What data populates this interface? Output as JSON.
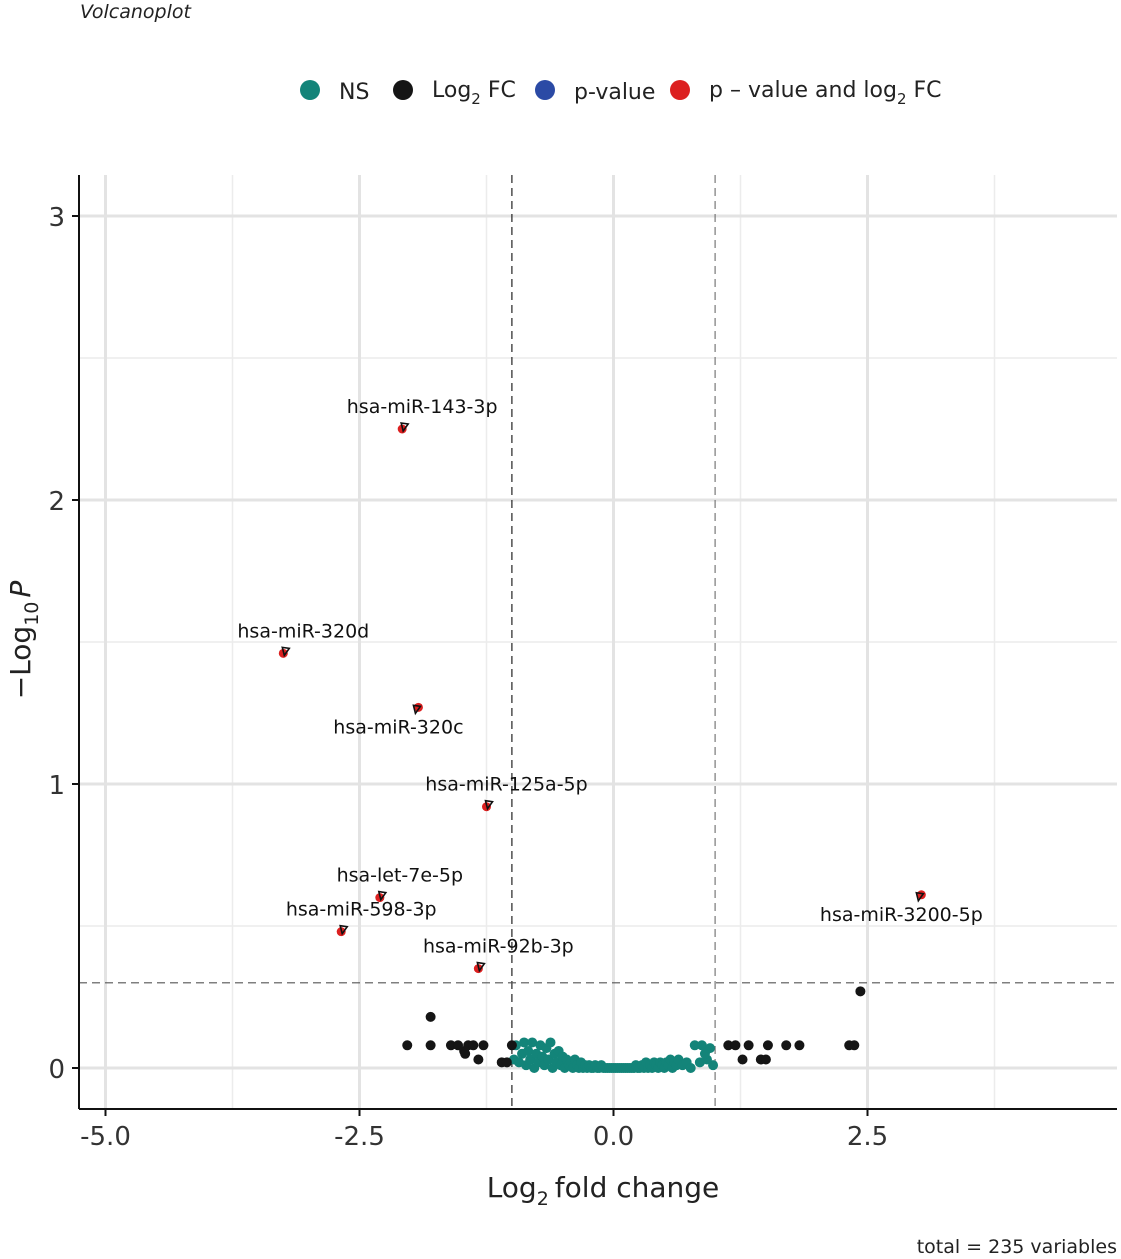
{
  "chart_data": {
    "type": "scatter",
    "subtitle": "Volcanoplot",
    "caption": "total = 235 variables",
    "xlabel": "fold change",
    "xlabel_prefix": "Log",
    "xlabel_sub": "2",
    "ylabel_prefix": "−Log",
    "ylabel_sub": "10",
    "ylabel_italic": "P",
    "xlim": [
      -5.4,
      4.8
    ],
    "ylim": [
      -0.14,
      3.15
    ],
    "x_ticks": [
      -5.0,
      -2.5,
      0.0,
      2.5
    ],
    "x_tick_labels": [
      "-5.0",
      "-2.5",
      "0.0",
      "2.5"
    ],
    "y_ticks": [
      0,
      1,
      2,
      3
    ],
    "y_tick_labels": [
      "0",
      "1",
      "2",
      "3"
    ],
    "fc_cutoff": [
      -1,
      1
    ],
    "p_cutoff": 0.3,
    "legend": [
      {
        "key": "ns",
        "text": "NS",
        "color": "#138479"
      },
      {
        "key": "fc",
        "text": "Log",
        "sub": "2",
        "after": " FC",
        "color": "#151515"
      },
      {
        "key": "p",
        "text": "p-value",
        "color": "#2b4aa5"
      },
      {
        "key": "both",
        "text": "p – value and log",
        "sub": "2",
        "after": " FC",
        "color": "#dc2020"
      }
    ],
    "series": [
      {
        "name": "NS",
        "color": "#138479",
        "points": [
          [
            -0.98,
            0.03
          ],
          [
            -0.96,
            0.08
          ],
          [
            -0.93,
            0.02
          ],
          [
            -0.9,
            0.05
          ],
          [
            -0.88,
            0.09
          ],
          [
            -0.86,
            0.01
          ],
          [
            -0.84,
            0.06
          ],
          [
            -0.82,
            0.03
          ],
          [
            -0.8,
            0.09
          ],
          [
            -0.78,
            0.0
          ],
          [
            -0.76,
            0.05
          ],
          [
            -0.74,
            0.02
          ],
          [
            -0.72,
            0.08
          ],
          [
            -0.7,
            0.04
          ],
          [
            -0.68,
            0.01
          ],
          [
            -0.66,
            0.07
          ],
          [
            -0.64,
            0.03
          ],
          [
            -0.62,
            0.09
          ],
          [
            -0.6,
            0.0
          ],
          [
            -0.58,
            0.05
          ],
          [
            -0.56,
            0.02
          ],
          [
            -0.54,
            0.06
          ],
          [
            -0.52,
            0.01
          ],
          [
            -0.5,
            0.04
          ],
          [
            -0.48,
            0.0
          ],
          [
            -0.46,
            0.03
          ],
          [
            -0.44,
            0.01
          ],
          [
            -0.42,
            0.02
          ],
          [
            -0.4,
            0.0
          ],
          [
            -0.38,
            0.03
          ],
          [
            -0.36,
            0.01
          ],
          [
            -0.34,
            0.0
          ],
          [
            -0.32,
            0.02
          ],
          [
            -0.3,
            0.0
          ],
          [
            -0.28,
            0.01
          ],
          [
            -0.26,
            0.0
          ],
          [
            -0.24,
            0.01
          ],
          [
            -0.22,
            0.0
          ],
          [
            -0.2,
            0.0
          ],
          [
            -0.18,
            0.01
          ],
          [
            -0.16,
            0.0
          ],
          [
            -0.14,
            0.0
          ],
          [
            -0.12,
            0.01
          ],
          [
            -0.1,
            0.0
          ],
          [
            -0.08,
            0.0
          ],
          [
            -0.06,
            0.0
          ],
          [
            -0.04,
            0.0
          ],
          [
            -0.02,
            0.0
          ],
          [
            0.0,
            0.0
          ],
          [
            0.02,
            0.0
          ],
          [
            0.04,
            0.0
          ],
          [
            0.06,
            0.0
          ],
          [
            0.08,
            0.0
          ],
          [
            0.1,
            0.0
          ],
          [
            0.12,
            0.0
          ],
          [
            0.14,
            0.0
          ],
          [
            0.16,
            0.0
          ],
          [
            0.18,
            0.0
          ],
          [
            0.2,
            0.0
          ],
          [
            0.22,
            0.01
          ],
          [
            0.24,
            0.0
          ],
          [
            0.26,
            0.0
          ],
          [
            0.28,
            0.01
          ],
          [
            0.3,
            0.0
          ],
          [
            0.32,
            0.02
          ],
          [
            0.34,
            0.0
          ],
          [
            0.36,
            0.01
          ],
          [
            0.38,
            0.0
          ],
          [
            0.4,
            0.02
          ],
          [
            0.42,
            0.01
          ],
          [
            0.44,
            0.0
          ],
          [
            0.46,
            0.02
          ],
          [
            0.48,
            0.01
          ],
          [
            0.5,
            0.0
          ],
          [
            0.52,
            0.02
          ],
          [
            0.54,
            0.01
          ],
          [
            0.56,
            0.03
          ],
          [
            0.58,
            0.0
          ],
          [
            0.6,
            0.02
          ],
          [
            0.62,
            0.01
          ],
          [
            0.64,
            0.03
          ],
          [
            0.68,
            0.01
          ],
          [
            0.72,
            0.02
          ],
          [
            0.76,
            0.0
          ],
          [
            0.8,
            0.08
          ],
          [
            0.85,
            0.02
          ],
          [
            0.87,
            0.08
          ],
          [
            0.98,
            0.01
          ],
          [
            0.95,
            0.07
          ],
          [
            0.92,
            0.03
          ],
          [
            0.9,
            0.05
          ]
        ]
      },
      {
        "name": "Log2 FC",
        "color": "#151515",
        "points": [
          [
            -2.03,
            0.08
          ],
          [
            -1.8,
            0.18
          ],
          [
            -1.8,
            0.08
          ],
          [
            -1.6,
            0.08
          ],
          [
            -1.53,
            0.08
          ],
          [
            -1.47,
            0.06
          ],
          [
            -1.46,
            0.05
          ],
          [
            -1.43,
            0.08
          ],
          [
            -1.38,
            0.08
          ],
          [
            -1.33,
            0.03
          ],
          [
            -1.28,
            0.08
          ],
          [
            -1.1,
            0.02
          ],
          [
            -1.05,
            0.02
          ],
          [
            -1.0,
            0.08
          ],
          [
            1.13,
            0.08
          ],
          [
            1.2,
            0.08
          ],
          [
            1.27,
            0.03
          ],
          [
            1.33,
            0.08
          ],
          [
            1.45,
            0.03
          ],
          [
            1.5,
            0.03
          ],
          [
            1.52,
            0.08
          ],
          [
            1.7,
            0.08
          ],
          [
            1.83,
            0.08
          ],
          [
            2.32,
            0.08
          ],
          [
            2.37,
            0.08
          ],
          [
            2.43,
            0.27
          ]
        ]
      },
      {
        "name": "p-value",
        "color": "#2b4aa5",
        "points": []
      },
      {
        "name": "p - value and log2 FC",
        "color": "#dc2020",
        "points": [
          [
            -2.08,
            2.25
          ],
          [
            -3.25,
            1.46
          ],
          [
            -1.92,
            1.27
          ],
          [
            -1.25,
            0.92
          ],
          [
            -2.3,
            0.6
          ],
          [
            -2.68,
            0.48
          ],
          [
            -1.33,
            0.35
          ],
          [
            3.03,
            0.61
          ]
        ]
      }
    ],
    "labels": [
      {
        "text": "hsa-miR-143-3p",
        "x": -2.08,
        "y": 2.25
      },
      {
        "text": "hsa-miR-320d",
        "x": -3.25,
        "y": 1.46
      },
      {
        "text": "hsa-miR-320c",
        "x": -1.92,
        "y": 1.27
      },
      {
        "text": "hsa-miR-125a-5p",
        "x": -1.25,
        "y": 0.92
      },
      {
        "text": "hsa-let-7e-5p",
        "x": -2.3,
        "y": 0.6
      },
      {
        "text": "hsa-miR-598-3p",
        "x": -2.68,
        "y": 0.48
      },
      {
        "text": "hsa-miR-92b-3p",
        "x": -1.33,
        "y": 0.35
      },
      {
        "text": "hsa-miR-3200-5p",
        "x": 3.03,
        "y": 0.61
      }
    ]
  }
}
